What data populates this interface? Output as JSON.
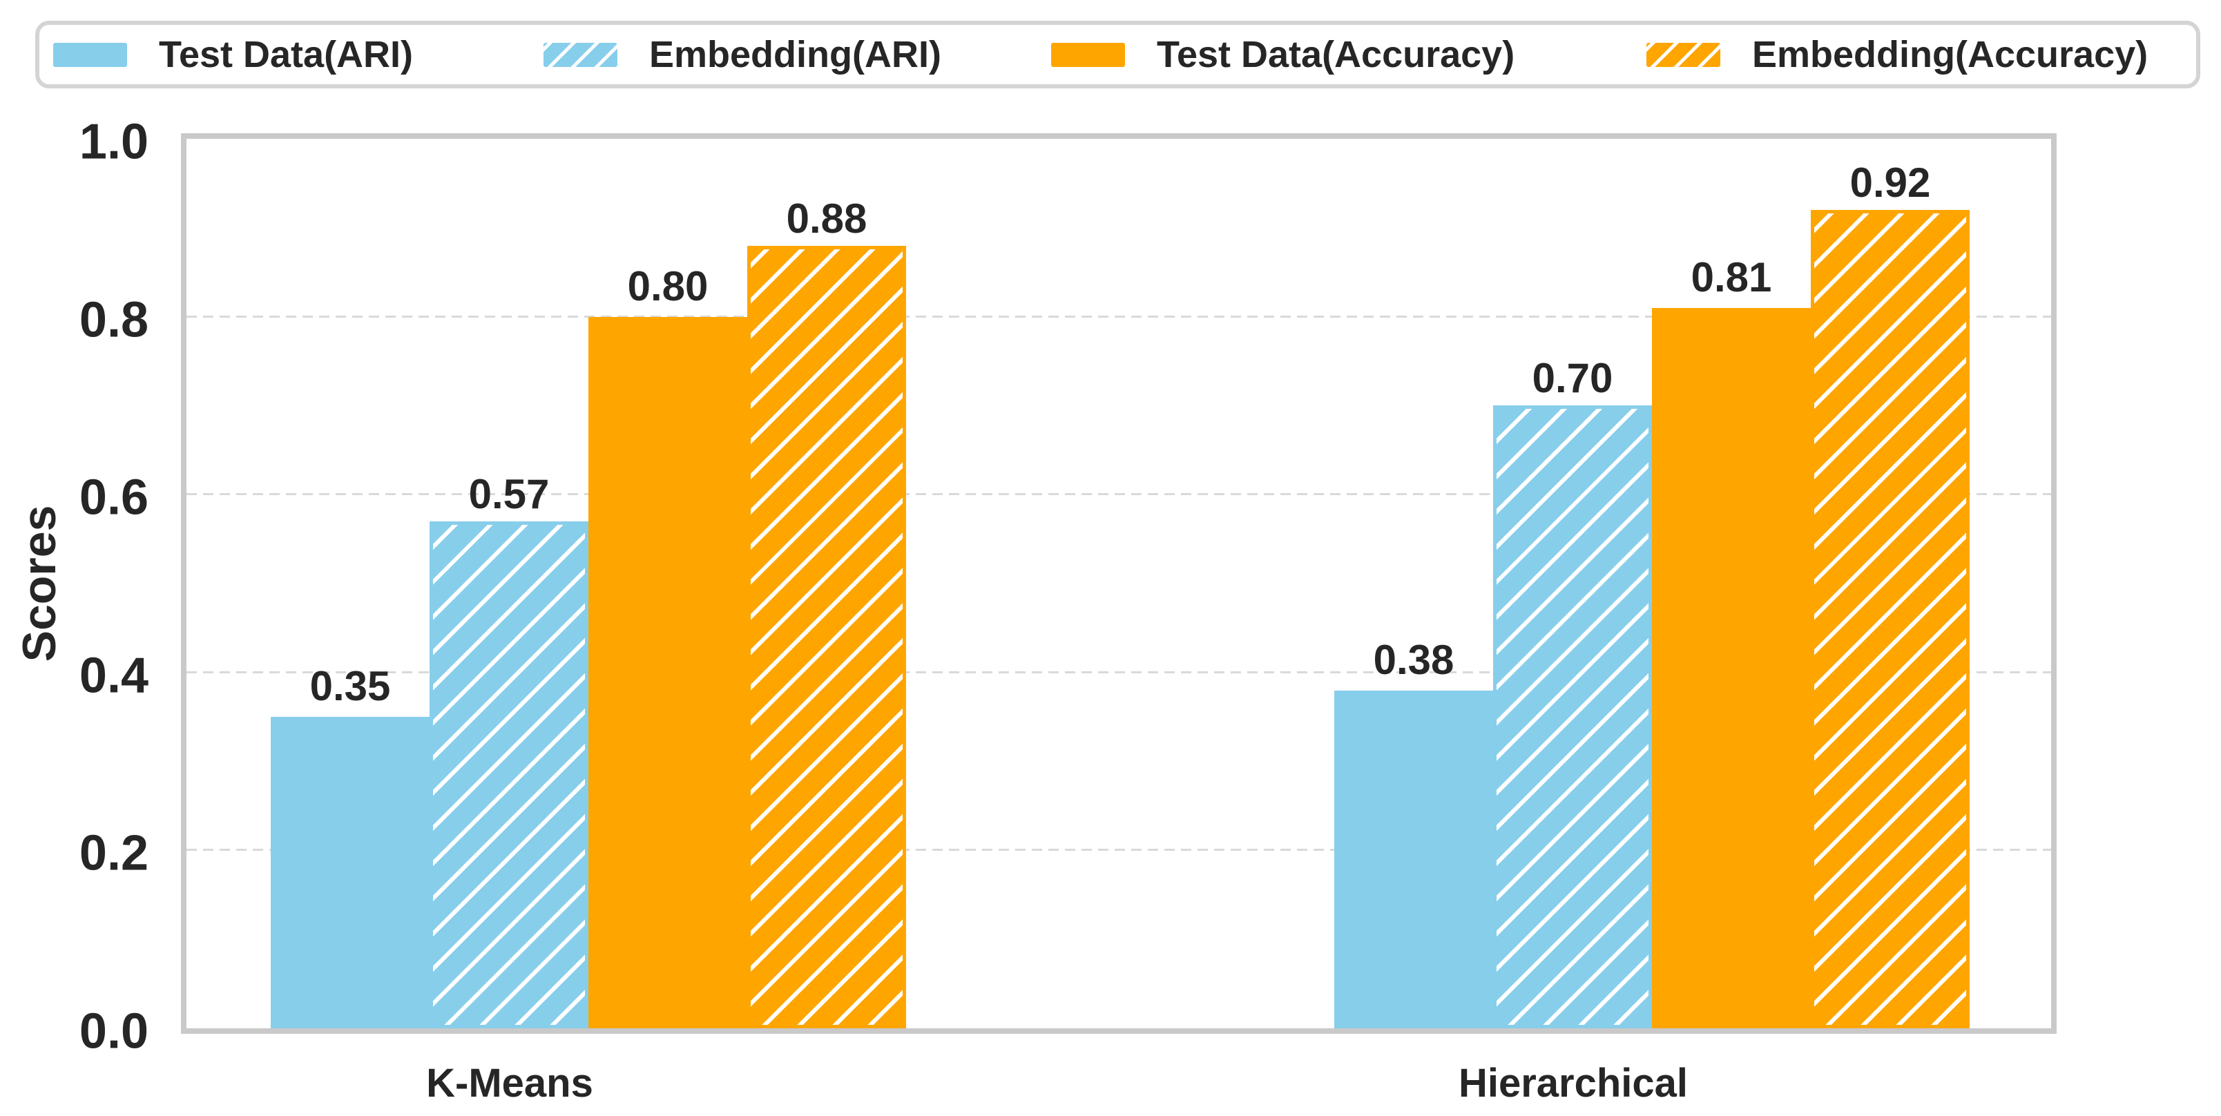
{
  "chart_data": {
    "type": "bar",
    "title": "",
    "xlabel": "",
    "ylabel": "Scores",
    "categories": [
      "K-Means",
      "Hierarchical"
    ],
    "series": [
      {
        "name": "Test Data(ARI)",
        "color": "#87CEEB",
        "hatch": false,
        "values": [
          0.35,
          0.38
        ],
        "value_labels": [
          "0.35",
          "0.38"
        ]
      },
      {
        "name": "Embedding(ARI)",
        "color": "#87CEEB",
        "hatch": true,
        "values": [
          0.57,
          0.7
        ],
        "value_labels": [
          "0.57",
          "0.70"
        ]
      },
      {
        "name": "Test Data(Accuracy)",
        "color": "#FFA500",
        "hatch": false,
        "values": [
          0.8,
          0.81
        ],
        "value_labels": [
          "0.80",
          "0.81"
        ]
      },
      {
        "name": "Embedding(Accuracy)",
        "color": "#FFA500",
        "hatch": true,
        "values": [
          0.88,
          0.92
        ],
        "value_labels": [
          "0.88",
          "0.92"
        ]
      }
    ],
    "ylim": [
      0.0,
      1.0
    ],
    "yticks": [
      "0.0",
      "0.2",
      "0.4",
      "0.6",
      "0.8",
      "1.0"
    ],
    "gridlines": {
      "values": [
        0.2,
        0.4,
        0.6,
        0.8
      ],
      "style": "dashed"
    },
    "legend_position": "top",
    "bar_value_labels": true,
    "hatch_style": "diagonal-forward-slash",
    "colors": {
      "ari_blue": "#87CEEB",
      "accuracy_orange": "#FFA500",
      "hatch_stripe": "#FFFFFF",
      "text": "#262626",
      "plot_border": "#C9C9C9",
      "gridline": "#D9D9D9",
      "legend_border": "#D4D4D4",
      "background": "#FFFFFF"
    }
  }
}
